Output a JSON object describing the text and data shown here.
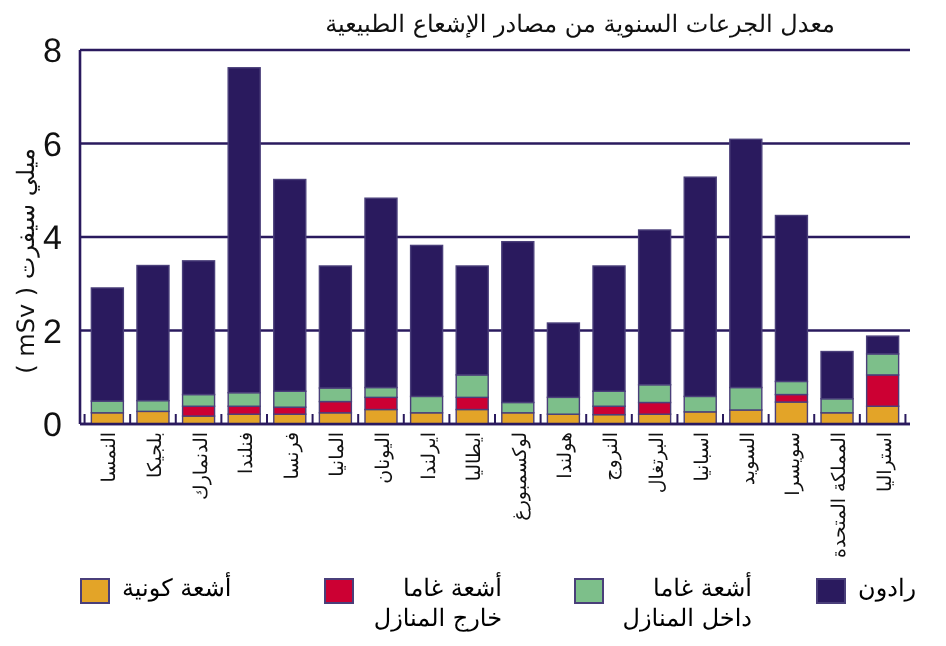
{
  "chart_data": {
    "type": "bar",
    "stacked": true,
    "title": "معدل الجرعات السنوية من مصادر الإشعاع الطبيعية",
    "ylabel": "ميلي سيفرت ( mSv )",
    "categories": [
      "النمسا",
      "بلجيكا",
      "الدنمارك",
      "فنلندا",
      "فرنسا",
      "المانيا",
      "اليونان",
      "ايرلندا",
      "ايطاليا",
      "لوكسمبورغ",
      "هولندا",
      "النروج",
      "البرتغال",
      "اسبانيا",
      "السويد",
      "سويسرا",
      "المملكة المتحدة",
      "استراليا"
    ],
    "series": [
      {
        "name": "أشعة كونية",
        "color": "#e3a428",
        "values": [
          0.24,
          0.27,
          0.17,
          0.21,
          0.21,
          0.24,
          0.31,
          0.24,
          0.31,
          0.24,
          0.21,
          0.2,
          0.21,
          0.26,
          0.3,
          0.47,
          0.24,
          0.38
        ]
      },
      {
        "name": "أشعة غاما خارج المنازل",
        "color": "#cc0033",
        "values": [
          null,
          null,
          0.21,
          0.17,
          0.15,
          0.24,
          0.26,
          null,
          0.26,
          null,
          null,
          0.18,
          0.25,
          null,
          null,
          0.16,
          null,
          0.67
        ]
      },
      {
        "name": "أشعة غاما داخل المنازل",
        "color": "#7dbf8a",
        "values": [
          0.25,
          0.23,
          0.25,
          0.29,
          0.34,
          0.29,
          0.21,
          0.35,
          0.48,
          0.22,
          0.36,
          0.32,
          0.38,
          0.33,
          0.48,
          0.28,
          0.3,
          0.45
        ]
      },
      {
        "name": "رادون",
        "color": "#2a1a5e",
        "values": [
          2.42,
          2.89,
          2.86,
          6.95,
          4.53,
          2.61,
          4.05,
          3.23,
          2.33,
          3.44,
          1.59,
          2.68,
          3.31,
          4.69,
          5.31,
          3.55,
          1.01,
          0.38
        ]
      }
    ],
    "ylim": [
      0,
      8
    ],
    "yticks": [
      0,
      2,
      4,
      6,
      8
    ],
    "grid": "y",
    "legend": "bottom"
  }
}
